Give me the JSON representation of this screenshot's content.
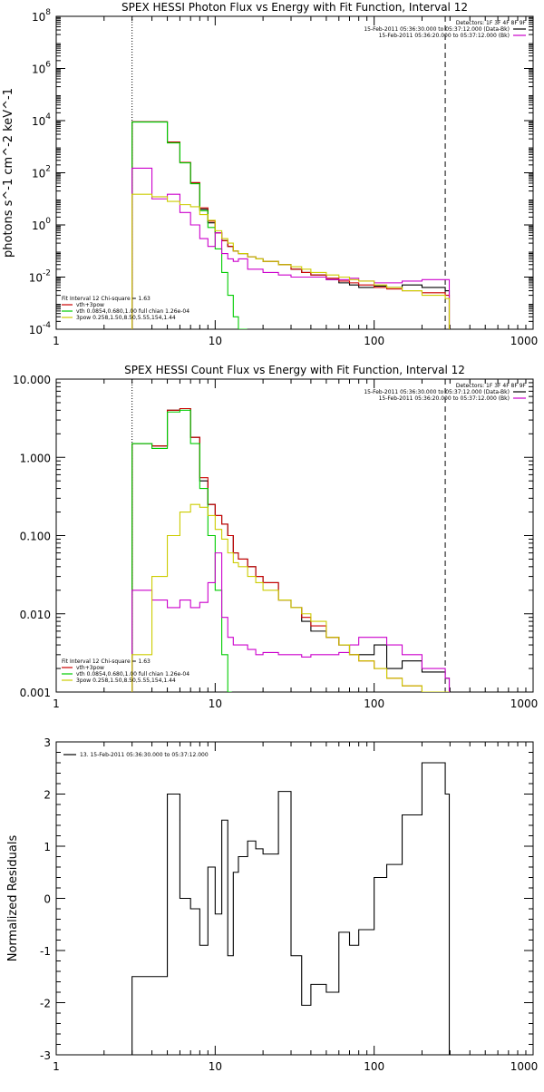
{
  "chart_data": [
    {
      "type": "line",
      "title": "SPEX HESSI Photon Flux vs Energy with Fit Function, Interval 12",
      "xscale": "log",
      "yscale": "log",
      "xlim": [
        1,
        1000
      ],
      "ylim": [
        0.0001,
        100000000
      ],
      "xticklabels": [
        "1",
        "10",
        "100",
        "1000"
      ],
      "yticklabels": [
        "10^-4",
        "10^-2",
        "10^0",
        "10^2",
        "10^4",
        "10^6",
        "10^8"
      ],
      "ylabel": "photons s^-1 cm^-2 keV^-1",
      "vlines": [
        {
          "x": 3,
          "style": "dotted"
        },
        {
          "x": 280,
          "style": "dashed"
        }
      ],
      "header": {
        "detectors": "Detectors: 1F 3F 4F 8F 9F",
        "lines": [
          {
            "text": "15-Feb-2011 05:36:30.000 to 05:37:12.000 (Data-Bk)",
            "color": "#000000"
          },
          {
            "text": "15-Feb-2011 05:36:20.000 to 05:37:12.000 (Bk)",
            "color": "#cc00cc"
          }
        ]
      },
      "legend": [
        {
          "text": "Fit Interval 12   Chi-square = 1.63",
          "color": "#000000"
        },
        {
          "text": "vth+3pow",
          "color": "#cc0000"
        },
        {
          "text": "vth 0.0854,0.680,1.00  full chian 1.26e-04",
          "color": "#00cc00"
        },
        {
          "text": "3pow 0.258,1.50,8.50,5.55,154,1.44",
          "color": "#cccc00"
        }
      ],
      "series": [
        {
          "color": "#000000",
          "x": [
            3,
            4,
            5,
            6,
            7,
            8,
            9,
            10,
            11,
            12,
            13,
            14,
            16,
            18,
            20,
            25,
            30,
            35,
            40,
            50,
            60,
            70,
            80,
            100,
            120,
            150,
            200,
            280
          ],
          "values": [
            9000,
            9000,
            1500,
            250,
            40,
            4,
            1.2,
            0.5,
            0.25,
            0.15,
            0.1,
            0.08,
            0.06,
            0.05,
            0.04,
            0.03,
            0.02,
            0.015,
            0.012,
            0.008,
            0.006,
            0.005,
            0.004,
            0.0045,
            0.004,
            0.005,
            0.004,
            0.003
          ]
        },
        {
          "color": "#cc0000",
          "x": [
            3,
            4,
            5,
            6,
            7,
            8,
            9,
            10,
            11,
            12,
            13,
            14,
            16,
            18,
            20,
            25,
            30,
            35,
            40,
            50,
            60,
            70,
            80,
            100,
            120,
            150,
            200,
            280
          ],
          "values": [
            9000,
            9000,
            1500,
            250,
            42,
            4.5,
            1.4,
            0.5,
            0.25,
            0.15,
            0.1,
            0.08,
            0.06,
            0.05,
            0.04,
            0.03,
            0.02,
            0.015,
            0.012,
            0.009,
            0.007,
            0.006,
            0.005,
            0.004,
            0.0035,
            0.003,
            0.0025,
            0.002
          ]
        },
        {
          "color": "#00cc00",
          "x": [
            3,
            4,
            5,
            6,
            7,
            8,
            9,
            10,
            11,
            12,
            13,
            14,
            15
          ],
          "values": [
            8800,
            8800,
            1400,
            240,
            38,
            3.5,
            0.8,
            0.12,
            0.015,
            0.002,
            0.0003,
            0.0001,
            0.0001
          ]
        },
        {
          "color": "#cc00cc",
          "x": [
            3,
            4,
            5,
            6,
            7,
            8,
            9,
            10,
            11,
            12,
            13,
            14,
            16,
            18,
            20,
            25,
            30,
            35,
            40,
            50,
            60,
            70,
            80,
            100,
            120,
            150,
            200,
            280
          ],
          "values": [
            150,
            10,
            15,
            3,
            1,
            0.3,
            0.15,
            0.5,
            0.08,
            0.05,
            0.04,
            0.05,
            0.02,
            0.02,
            0.015,
            0.012,
            0.01,
            0.01,
            0.01,
            0.008,
            0.008,
            0.009,
            0.007,
            0.006,
            0.006,
            0.007,
            0.008,
            0.008
          ]
        },
        {
          "color": "#cccc00",
          "x": [
            3,
            4,
            5,
            6,
            7,
            8,
            9,
            10,
            11,
            12,
            13,
            14,
            16,
            18,
            20,
            25,
            30,
            35,
            40,
            50,
            60,
            70,
            80,
            100,
            120,
            150,
            200,
            280
          ],
          "values": [
            15,
            12,
            8,
            6,
            5,
            2.5,
            1.5,
            0.6,
            0.3,
            0.2,
            0.1,
            0.08,
            0.06,
            0.05,
            0.04,
            0.03,
            0.025,
            0.02,
            0.015,
            0.012,
            0.01,
            0.008,
            0.007,
            0.005,
            0.004,
            0.003,
            0.002,
            0.0015
          ]
        }
      ]
    },
    {
      "type": "line",
      "title": "SPEX HESSI Count Flux vs Energy with Fit Function, Interval 12",
      "xscale": "log",
      "yscale": "log",
      "xlim": [
        1,
        1000
      ],
      "ylim": [
        0.001,
        10
      ],
      "xticklabels": [
        "1",
        "10",
        "100",
        "1000"
      ],
      "yticklabels": [
        "0.001",
        "0.010",
        "0.100",
        "1.000",
        "10.000"
      ],
      "ylabel": "",
      "vlines": [
        {
          "x": 3,
          "style": "dotted"
        },
        {
          "x": 280,
          "style": "dashed"
        }
      ],
      "header": {
        "detectors": "Detectors: 1F 3F 4F 8F 9F",
        "lines": [
          {
            "text": "15-Feb-2011 05:36:30.000 to 05:37:12.000 (Data-Bk)",
            "color": "#000000"
          },
          {
            "text": "15-Feb-2011 05:36:20.000 to 05:37:12.000 (Bk)",
            "color": "#cc00cc"
          }
        ]
      },
      "legend": [
        {
          "text": "Fit Interval 12   Chi-square = 1.63",
          "color": "#000000"
        },
        {
          "text": "vth+3pow",
          "color": "#cc0000"
        },
        {
          "text": "vth 0.0854,0.680,1.00  full chian 1.26e-04",
          "color": "#00cc00"
        },
        {
          "text": "3pow 0.258,1.50,8.50,5.55,154,1.44",
          "color": "#cccc00"
        }
      ],
      "series": [
        {
          "color": "#000000",
          "x": [
            3,
            4,
            5,
            6,
            7,
            8,
            9,
            10,
            11,
            12,
            13,
            14,
            16,
            18,
            20,
            25,
            30,
            35,
            40,
            50,
            60,
            70,
            80,
            100,
            120,
            150,
            200,
            280
          ],
          "values": [
            1.5,
            1.4,
            4.0,
            4.2,
            1.8,
            0.5,
            0.25,
            0.18,
            0.14,
            0.1,
            0.06,
            0.05,
            0.04,
            0.03,
            0.025,
            0.015,
            0.012,
            0.008,
            0.006,
            0.005,
            0.004,
            0.003,
            0.003,
            0.004,
            0.002,
            0.0025,
            0.0018,
            0.0015
          ]
        },
        {
          "color": "#cc0000",
          "x": [
            3,
            4,
            5,
            6,
            7,
            8,
            9,
            10,
            11,
            12,
            13,
            14,
            16,
            18,
            20,
            25,
            30,
            35,
            40,
            50,
            60,
            70,
            80,
            100,
            120,
            150,
            200,
            280
          ],
          "values": [
            1.5,
            1.4,
            4.0,
            4.2,
            1.8,
            0.55,
            0.25,
            0.18,
            0.14,
            0.1,
            0.06,
            0.05,
            0.04,
            0.03,
            0.025,
            0.015,
            0.012,
            0.009,
            0.007,
            0.005,
            0.004,
            0.003,
            0.0025,
            0.002,
            0.0015,
            0.0012,
            0.001,
            0.0009
          ]
        },
        {
          "color": "#00cc00",
          "x": [
            3,
            4,
            5,
            6,
            7,
            8,
            9,
            10,
            11,
            12
          ],
          "values": [
            1.5,
            1.3,
            3.8,
            4.0,
            1.5,
            0.4,
            0.1,
            0.02,
            0.003,
            0.0008
          ]
        },
        {
          "color": "#cc00cc",
          "x": [
            3,
            4,
            5,
            6,
            7,
            8,
            9,
            10,
            11,
            12,
            13,
            14,
            16,
            18,
            20,
            25,
            30,
            35,
            40,
            50,
            60,
            70,
            80,
            100,
            120,
            150,
            200,
            280
          ],
          "values": [
            0.02,
            0.015,
            0.012,
            0.015,
            0.012,
            0.014,
            0.025,
            0.06,
            0.009,
            0.005,
            0.004,
            0.004,
            0.0035,
            0.003,
            0.0032,
            0.003,
            0.003,
            0.0028,
            0.003,
            0.003,
            0.0032,
            0.004,
            0.005,
            0.005,
            0.004,
            0.003,
            0.002,
            0.0015
          ]
        },
        {
          "color": "#cccc00",
          "x": [
            3,
            4,
            5,
            6,
            7,
            8,
            9,
            10,
            11,
            12,
            13,
            14,
            16,
            18,
            20,
            25,
            30,
            35,
            40,
            50,
            60,
            70,
            80,
            100,
            120,
            150,
            200,
            280
          ],
          "values": [
            0.003,
            0.03,
            0.1,
            0.2,
            0.25,
            0.23,
            0.18,
            0.12,
            0.09,
            0.06,
            0.045,
            0.04,
            0.03,
            0.025,
            0.02,
            0.015,
            0.012,
            0.01,
            0.008,
            0.005,
            0.004,
            0.003,
            0.0025,
            0.002,
            0.0015,
            0.0012,
            0.001,
            0.0008
          ]
        }
      ]
    },
    {
      "type": "line",
      "title": "",
      "xscale": "log",
      "xlim": [
        1,
        1000
      ],
      "ylim": [
        -3,
        3
      ],
      "xticklabels": [
        "1",
        "10",
        "100",
        "1000"
      ],
      "yticklabels": [
        "-3",
        "-2",
        "-1",
        "0",
        "1",
        "2",
        "3"
      ],
      "ylabel": "Normalized Residuals",
      "legend": [
        {
          "text": "13. 15-Feb-2011 05:36:30.000 to 05:37:12.000",
          "color": "#000000"
        }
      ],
      "series": [
        {
          "color": "#000000",
          "x": [
            3,
            4,
            5,
            6,
            7,
            8,
            9,
            10,
            11,
            12,
            13,
            14,
            16,
            18,
            20,
            25,
            30,
            35,
            40,
            50,
            60,
            70,
            80,
            100,
            120,
            150,
            200,
            280
          ],
          "values": [
            -1.5,
            -1.5,
            2.0,
            0.0,
            -0.2,
            -0.9,
            0.6,
            -0.3,
            1.5,
            -1.1,
            0.5,
            0.8,
            1.1,
            0.95,
            0.85,
            2.05,
            -1.1,
            -2.05,
            -1.65,
            -1.8,
            -0.65,
            -0.9,
            -0.6,
            0.4,
            0.65,
            1.6,
            2.6,
            2.0
          ]
        }
      ]
    }
  ]
}
